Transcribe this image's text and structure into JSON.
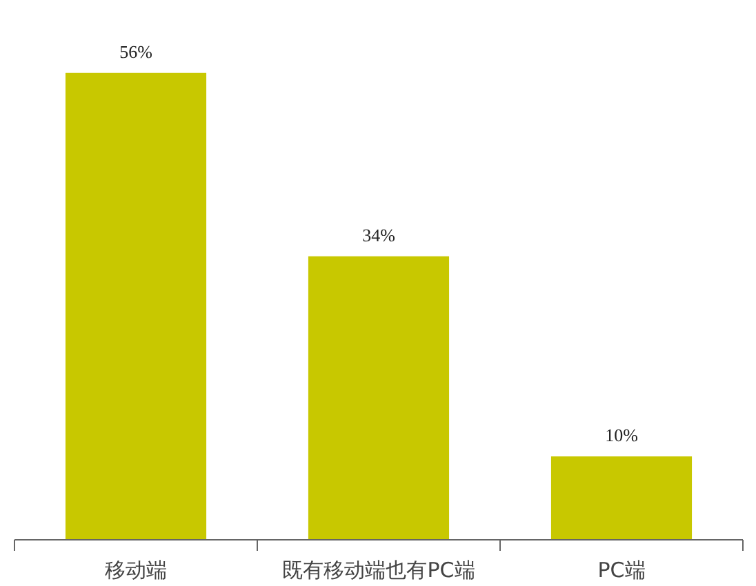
{
  "chart_data": {
    "type": "bar",
    "categories": [
      "移动端",
      "既有移动端也有PC端",
      "PC端"
    ],
    "values": [
      56,
      34,
      10
    ],
    "value_labels": [
      "56%",
      "34%",
      "10%"
    ],
    "color": "#c8c800",
    "grid": false
  }
}
